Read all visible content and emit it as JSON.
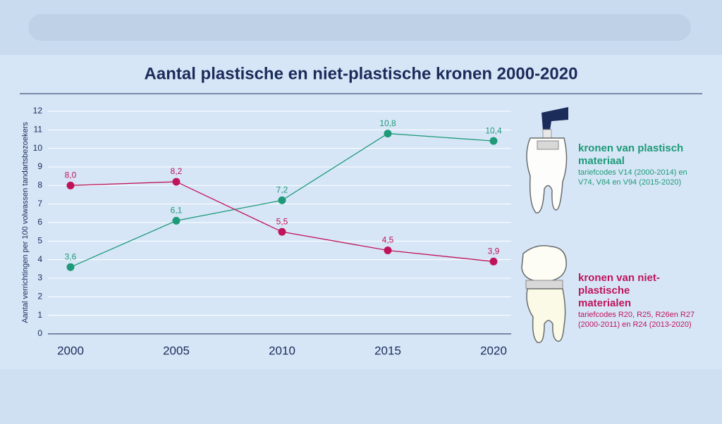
{
  "chart_data": {
    "type": "line",
    "title": "Aantal plastische en niet-plastische kronen 2000-2020",
    "ylabel": "Aantal verrichtingen per 100 volwassen tandartsbezoekers",
    "x": [
      2000,
      2005,
      2010,
      2015,
      2020
    ],
    "xlim": [
      2000,
      2020
    ],
    "ylim": [
      0,
      12
    ],
    "yticks": [
      0,
      1,
      2,
      3,
      4,
      5,
      6,
      7,
      8,
      9,
      10,
      11,
      12
    ],
    "grid": true,
    "series": [
      {
        "name": "kronen van plastisch materiaal",
        "description": "tariefcodes V14 (2000-2014) en V74, V84 en V94 (2015-2020)",
        "color": "#1e9a78",
        "values": [
          3.6,
          6.1,
          7.2,
          10.8,
          10.4
        ],
        "value_labels": [
          "3,6",
          "6,1",
          "7,2",
          "10,8",
          "10,4"
        ]
      },
      {
        "name": "kronen van niet-plastische materialen",
        "description": "tariefcodes R20, R25, R26en R27 (2000-2011) en R24 (2013-2020)",
        "color": "#c0145a",
        "values": [
          8.0,
          8.2,
          5.5,
          4.5,
          3.9
        ],
        "value_labels": [
          "8,0",
          "8,2",
          "5,5",
          "4,5",
          "3,9"
        ]
      }
    ]
  }
}
